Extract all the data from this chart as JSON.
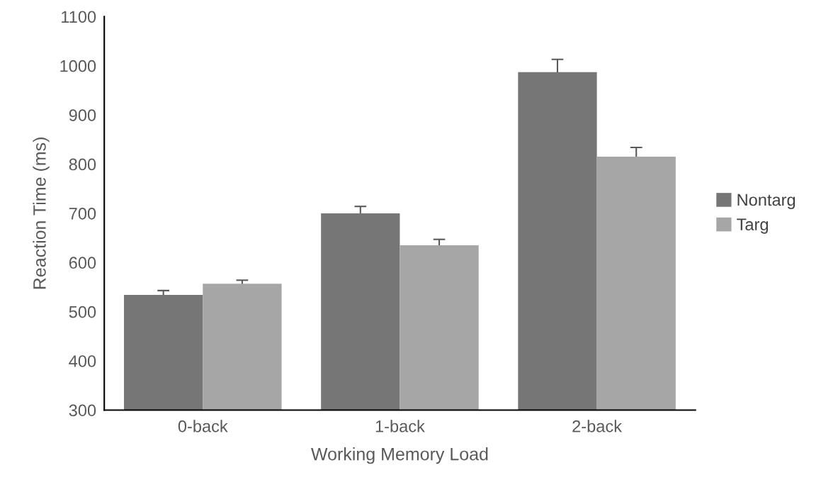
{
  "chart_data": {
    "type": "bar",
    "xlabel": "Working Memory Load",
    "ylabel": "Reaction Time (ms)",
    "categories": [
      "0-back",
      "1-back",
      "2-back"
    ],
    "series": [
      {
        "name": "Nontarg",
        "color": "#767676",
        "values": [
          534,
          700,
          987
        ],
        "errors": [
          9,
          14,
          26
        ]
      },
      {
        "name": "Targ",
        "color": "#a6a6a6",
        "values": [
          557,
          635,
          815
        ],
        "errors": [
          7,
          12,
          19
        ]
      }
    ],
    "ylim": [
      300,
      1100
    ],
    "yticks": [
      300,
      400,
      500,
      600,
      700,
      800,
      900,
      1000,
      1100
    ],
    "grid": false,
    "legend": "right"
  }
}
